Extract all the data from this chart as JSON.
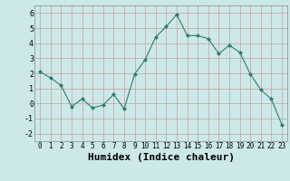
{
  "x": [
    0,
    1,
    2,
    3,
    4,
    5,
    6,
    7,
    8,
    9,
    10,
    11,
    12,
    13,
    14,
    15,
    16,
    17,
    18,
    19,
    20,
    21,
    22,
    23
  ],
  "y": [
    2.1,
    1.7,
    1.2,
    -0.2,
    0.3,
    -0.3,
    -0.1,
    0.6,
    -0.35,
    1.95,
    2.9,
    4.4,
    5.1,
    5.9,
    4.5,
    4.5,
    4.3,
    3.3,
    3.85,
    3.4,
    1.95,
    0.9,
    0.3,
    -1.4
  ],
  "xlabel": "Humidex (Indice chaleur)",
  "xlim": [
    -0.5,
    23.5
  ],
  "ylim": [
    -2.5,
    6.5
  ],
  "line_color": "#2e7d6e",
  "marker_color": "#2e7d6e",
  "bg_color": "#cce8e8",
  "grid_color": "#b0d0d0",
  "xlabel_fontsize": 8,
  "tick_fontsize": 5.5,
  "xticks": [
    0,
    1,
    2,
    3,
    4,
    5,
    6,
    7,
    8,
    9,
    10,
    11,
    12,
    13,
    14,
    15,
    16,
    17,
    18,
    19,
    20,
    21,
    22,
    23
  ],
  "yticks": [
    -2,
    -1,
    0,
    1,
    2,
    3,
    4,
    5,
    6
  ]
}
